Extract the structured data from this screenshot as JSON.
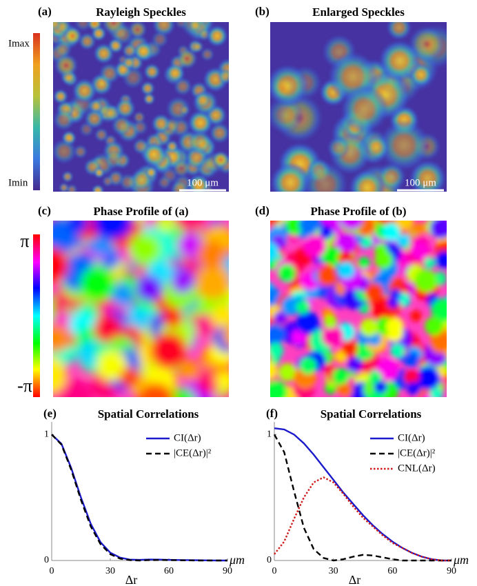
{
  "image_panels": [
    {
      "label": "(a)",
      "title": "Rayleigh Speckles",
      "scale_bar": "100 μm"
    },
    {
      "label": "(b)",
      "title": "Enlarged Speckles",
      "scale_bar": "100 μm"
    },
    {
      "label": "(c)",
      "title": "Phase Profile of (a)"
    },
    {
      "label": "(d)",
      "title": "Phase Profile of (b)"
    }
  ],
  "colorbars": [
    {
      "max_label": "Imax",
      "min_label": "Imin"
    },
    {
      "max_label": "π",
      "min_label": "-π"
    }
  ],
  "chart_data": [
    {
      "type": "line",
      "label": "(e)",
      "title": "Spatial Correlations",
      "xlabel": "Δr",
      "xunit": "μm",
      "x": [
        0,
        5,
        10,
        15,
        20,
        25,
        30,
        35,
        40,
        45,
        50,
        55,
        60,
        65,
        70,
        75,
        80,
        85,
        90
      ],
      "xlim": [
        0,
        90
      ],
      "xticks": [
        0,
        30,
        60,
        90
      ],
      "ylim": [
        0,
        1.1
      ],
      "yticks": [
        0,
        1
      ],
      "legend": "upper right",
      "series": [
        {
          "name": "CI(Δr)",
          "color": "#1a1acc",
          "dash": "solid",
          "values": [
            1,
            0.926,
            0.734,
            0.499,
            0.291,
            0.145,
            0.062,
            0.023,
            0.007,
            0.005,
            0.008,
            0.007,
            0.005,
            0.004,
            0.003,
            0.002,
            0.001,
            0,
            0
          ]
        },
        {
          "name": "|CE(Δr)|²",
          "color": "#000000",
          "dash": "dashed",
          "values": [
            1,
            0.92,
            0.72,
            0.48,
            0.27,
            0.13,
            0.05,
            0.015,
            0.003,
            0,
            0.003,
            0.004,
            0.003,
            0.002,
            0.001,
            0,
            0,
            0,
            0
          ]
        }
      ]
    },
    {
      "type": "line",
      "label": "(f)",
      "title": "Spatial Correlations",
      "xlabel": "Δr",
      "xunit": "μm",
      "x": [
        0,
        5,
        10,
        15,
        20,
        25,
        30,
        35,
        40,
        45,
        50,
        55,
        60,
        65,
        70,
        75,
        80,
        85,
        90
      ],
      "xlim": [
        0,
        90
      ],
      "xticks": [
        0,
        30,
        60,
        90
      ],
      "ylim": [
        0,
        1.1
      ],
      "yticks": [
        0,
        1
      ],
      "legend": "upper right",
      "series": [
        {
          "name": "CI(Δr)",
          "color": "#1a1acc",
          "dash": "solid",
          "values": [
            1.05,
            1.04,
            1.0,
            0.93,
            0.84,
            0.74,
            0.64,
            0.54,
            0.45,
            0.36,
            0.28,
            0.21,
            0.15,
            0.1,
            0.06,
            0.03,
            0.01,
            0,
            0
          ]
        },
        {
          "name": "|CE(Δr)|²",
          "color": "#000000",
          "dash": "dashed",
          "values": [
            1,
            0.86,
            0.55,
            0.26,
            0.09,
            0.02,
            0,
            0.01,
            0.03,
            0.045,
            0.04,
            0.025,
            0.01,
            0,
            0,
            0,
            0,
            0,
            0
          ]
        },
        {
          "name": "CNL(Δr)",
          "color": "#d01818",
          "dash": "dotted",
          "values": [
            0.05,
            0.15,
            0.33,
            0.5,
            0.62,
            0.66,
            0.62,
            0.53,
            0.43,
            0.34,
            0.27,
            0.2,
            0.14,
            0.1,
            0.06,
            0.03,
            0.01,
            0,
            0
          ]
        }
      ]
    }
  ]
}
